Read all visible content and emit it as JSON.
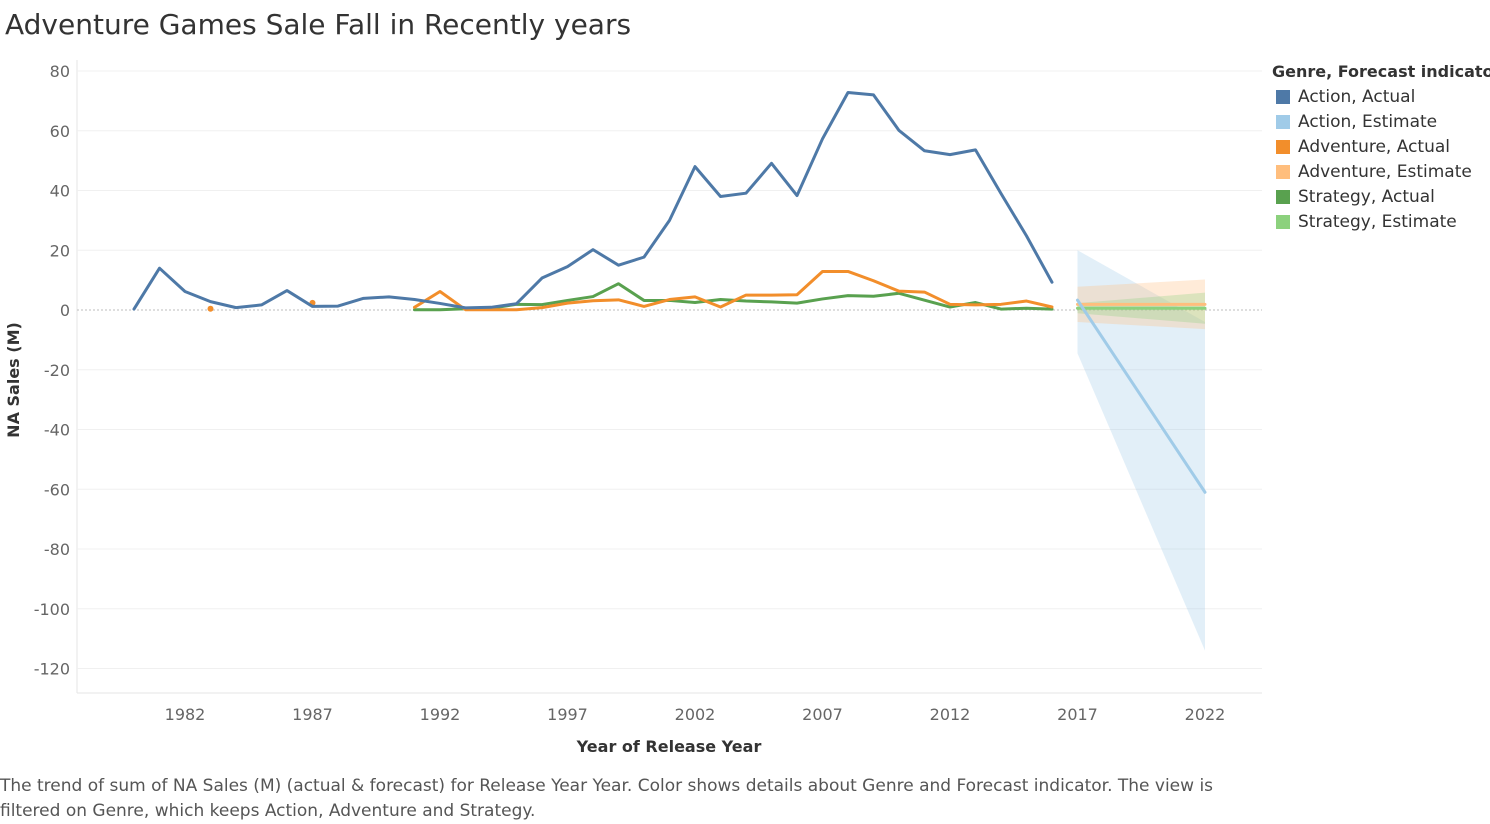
{
  "chart_data": {
    "type": "line",
    "title": "Adventure Games Sale Fall in Recently years",
    "xlabel": "Year of Release Year",
    "ylabel": "NA Sales (M)",
    "xlim": [
      1978,
      2023
    ],
    "ylim": [
      -124,
      82
    ],
    "x_ticks": [
      1982,
      1987,
      1992,
      1997,
      2002,
      2007,
      2012,
      2017,
      2022
    ],
    "y_ticks": [
      80,
      60,
      40,
      20,
      0,
      -20,
      -40,
      -60,
      -80,
      -100,
      -120
    ],
    "grid": true,
    "legend": {
      "title": "Genre, Forecast indicator",
      "placement": "right"
    },
    "series": [
      {
        "name": "Action, Actual",
        "color": "#4e79a7",
        "points": [
          [
            1980,
            0.3
          ],
          [
            1981,
            14.0
          ],
          [
            1982,
            6.2
          ],
          [
            1983,
            2.8
          ],
          [
            1984,
            0.8
          ],
          [
            1985,
            1.7
          ],
          [
            1986,
            6.5
          ],
          [
            1987,
            1.2
          ],
          [
            1988,
            1.3
          ],
          [
            1989,
            3.9
          ],
          [
            1990,
            4.4
          ],
          [
            1991,
            3.5
          ],
          [
            1992,
            2.2
          ],
          [
            1993,
            0.7
          ],
          [
            1994,
            0.9
          ],
          [
            1995,
            2.1
          ],
          [
            1996,
            10.7
          ],
          [
            1997,
            14.5
          ],
          [
            1998,
            20.2
          ],
          [
            1999,
            15.0
          ],
          [
            2000,
            17.7
          ],
          [
            2001,
            30.0
          ],
          [
            2002,
            48.0
          ],
          [
            2003,
            38.0
          ],
          [
            2004,
            39.1
          ],
          [
            2005,
            49.1
          ],
          [
            2006,
            38.3
          ],
          [
            2007,
            57.3
          ],
          [
            2008,
            72.8
          ],
          [
            2009,
            72.0
          ],
          [
            2010,
            60.1
          ],
          [
            2011,
            53.3
          ],
          [
            2012,
            52.0
          ],
          [
            2013,
            53.6
          ],
          [
            2014,
            39.0
          ],
          [
            2015,
            24.8
          ],
          [
            2016,
            9.3
          ]
        ]
      },
      {
        "name": "Action, Estimate",
        "color": "#a0cbe8",
        "points": [
          [
            2017,
            3.3
          ],
          [
            2022,
            -61.0
          ]
        ],
        "band": {
          "upper": [
            [
              2017,
              20.0
            ],
            [
              2022,
              -4.0
            ]
          ],
          "lower": [
            [
              2017,
              -14.5
            ],
            [
              2022,
              -114.0
            ]
          ]
        }
      },
      {
        "name": "Adventure, Actual",
        "color": "#f28e2b",
        "points": [
          [
            1991,
            0.9
          ],
          [
            1992,
            6.2
          ],
          [
            1993,
            0.1
          ],
          [
            1994,
            0.1
          ],
          [
            1995,
            0.1
          ],
          [
            1996,
            0.8
          ],
          [
            1997,
            2.3
          ],
          [
            1998,
            3.1
          ],
          [
            1999,
            3.4
          ],
          [
            2000,
            1.2
          ],
          [
            2001,
            3.5
          ],
          [
            2002,
            4.4
          ],
          [
            2003,
            1.0
          ],
          [
            2004,
            5.0
          ],
          [
            2005,
            5.0
          ],
          [
            2006,
            5.1
          ],
          [
            2007,
            12.9
          ],
          [
            2008,
            12.9
          ],
          [
            2009,
            9.8
          ],
          [
            2010,
            6.3
          ],
          [
            2011,
            6.0
          ],
          [
            2012,
            1.9
          ],
          [
            2013,
            1.7
          ],
          [
            2014,
            1.9
          ],
          [
            2015,
            3.0
          ],
          [
            2016,
            1.0
          ]
        ],
        "isolated_points": [
          [
            1983,
            0.4
          ],
          [
            1987,
            2.4
          ]
        ]
      },
      {
        "name": "Adventure, Estimate",
        "color": "#ffbe7d",
        "points": [
          [
            2017,
            1.9
          ],
          [
            2022,
            1.9
          ]
        ],
        "band": {
          "upper": [
            [
              2017,
              7.8
            ],
            [
              2022,
              10.2
            ]
          ],
          "lower": [
            [
              2017,
              -4.0
            ],
            [
              2022,
              -6.4
            ]
          ]
        }
      },
      {
        "name": "Strategy, Actual",
        "color": "#59a14f",
        "points": [
          [
            1991,
            0.1
          ],
          [
            1992,
            0.1
          ],
          [
            1993,
            0.4
          ],
          [
            1994,
            0.6
          ],
          [
            1995,
            1.9
          ],
          [
            1996,
            1.8
          ],
          [
            1997,
            3.2
          ],
          [
            1998,
            4.5
          ],
          [
            1999,
            8.8
          ],
          [
            2000,
            3.2
          ],
          [
            2001,
            3.2
          ],
          [
            2002,
            2.5
          ],
          [
            2003,
            3.5
          ],
          [
            2004,
            3.0
          ],
          [
            2005,
            2.7
          ],
          [
            2006,
            2.3
          ],
          [
            2007,
            3.7
          ],
          [
            2008,
            4.8
          ],
          [
            2009,
            4.6
          ],
          [
            2010,
            5.6
          ],
          [
            2011,
            3.3
          ],
          [
            2012,
            1.0
          ],
          [
            2013,
            2.5
          ],
          [
            2014,
            0.3
          ],
          [
            2015,
            0.6
          ],
          [
            2016,
            0.3
          ]
        ]
      },
      {
        "name": "Strategy, Estimate",
        "color": "#8cd17d",
        "points": [
          [
            2017,
            0.6
          ],
          [
            2022,
            0.6
          ]
        ],
        "band": {
          "upper": [
            [
              2017,
              2.3
            ],
            [
              2022,
              5.8
            ]
          ],
          "lower": [
            [
              2017,
              -1.1
            ],
            [
              2022,
              -4.6
            ]
          ]
        }
      }
    ]
  },
  "caption": {
    "text": "The trend of sum of NA Sales (M) (actual & forecast)  for Release Year Year.  Color shows details about Genre and Forecast indicator. The view is filtered on Genre, which keeps Action, Adventure and Strategy."
  }
}
